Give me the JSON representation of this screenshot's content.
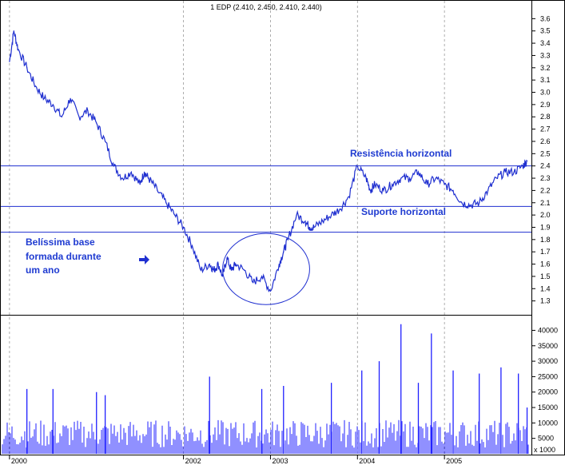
{
  "header": {
    "text": "1 EDP (2.410, 2.450, 2.410, 2.440)"
  },
  "colors": {
    "price_line": "#1f2fd0",
    "volume_bars": "#2020ff",
    "annotation_text": "#1f3bd1",
    "grid": "#9a9a9a",
    "frame": "#000000"
  },
  "annotations": {
    "resistance": "Resistência horizontal",
    "support": "Suporte horizontal",
    "base_line1": "Belíssima base",
    "base_line2": "formada durante",
    "base_line3": "um ano"
  },
  "volume_multiplier_label": "x 1000",
  "chart_data": [
    {
      "type": "line",
      "xlabel": "",
      "ylabel": "",
      "x_ticks": [
        "2000",
        "2002",
        "2003",
        "2004",
        "2005"
      ],
      "x_domain": [
        1999.9,
        2006.0
      ],
      "y_ticks": [
        1.3,
        1.4,
        1.5,
        1.6,
        1.7,
        1.8,
        1.9,
        2.0,
        2.1,
        2.2,
        2.3,
        2.4,
        2.5,
        2.6,
        2.7,
        2.8,
        2.9,
        3.0,
        3.1,
        3.2,
        3.3,
        3.4,
        3.5,
        3.6
      ],
      "ylim": [
        1.2,
        3.7
      ],
      "grid": "vertical dashed at year ticks",
      "series": [
        {
          "x": [
            2000.0,
            2000.05,
            2000.1,
            2000.2,
            2000.3,
            2000.4,
            2000.5,
            2000.6,
            2000.7,
            2000.8,
            2000.9,
            2001.0,
            2001.1,
            2001.2,
            2001.3,
            2001.4,
            2001.5,
            2001.55,
            2001.6,
            2001.7,
            2001.8,
            2001.9,
            2002.0,
            2002.1,
            2002.2,
            2002.3,
            2002.35,
            2002.4,
            2002.45,
            2002.5,
            2002.55,
            2002.6,
            2002.7,
            2002.8,
            2002.9,
            2003.0,
            2003.1,
            2003.15,
            2003.2,
            2003.3,
            2003.4,
            2003.45,
            2003.5,
            2003.6,
            2003.7,
            2003.8,
            2003.9,
            2004.0,
            2004.1,
            2004.15,
            2004.2,
            2004.3,
            2004.4,
            2004.5,
            2004.6,
            2004.7,
            2004.8,
            2004.9,
            2005.0,
            2005.1,
            2005.2,
            2005.3,
            2005.4,
            2005.5,
            2005.6,
            2005.7,
            2005.8,
            2005.9,
            2005.95
          ],
          "values": [
            3.25,
            3.5,
            3.35,
            3.2,
            3.05,
            2.95,
            2.9,
            2.8,
            2.95,
            2.8,
            2.85,
            2.75,
            2.6,
            2.4,
            2.3,
            2.35,
            2.25,
            2.35,
            2.3,
            2.2,
            2.1,
            2.0,
            1.9,
            1.75,
            1.55,
            1.6,
            1.55,
            1.6,
            1.5,
            1.65,
            1.55,
            1.6,
            1.55,
            1.45,
            1.5,
            1.38,
            1.6,
            1.7,
            1.8,
            2.0,
            1.95,
            1.9,
            1.9,
            1.95,
            2.0,
            2.05,
            2.15,
            2.4,
            2.3,
            2.2,
            2.25,
            2.2,
            2.25,
            2.3,
            2.3,
            2.35,
            2.25,
            2.3,
            2.25,
            2.2,
            2.1,
            2.08,
            2.1,
            2.2,
            2.3,
            2.35,
            2.35,
            2.4,
            2.44
          ]
        }
      ],
      "horizontal_levels": [
        2.4,
        2.07,
        1.86
      ],
      "ellipse": {
        "x_range": [
          2002.45,
          2003.45
        ],
        "y_range": [
          1.27,
          1.85
        ]
      }
    },
    {
      "type": "bar",
      "xlabel": "",
      "ylabel": "",
      "y_ticks": [
        5000,
        10000,
        15000,
        20000,
        25000,
        30000,
        35000,
        40000
      ],
      "ylim": [
        0,
        44000
      ],
      "series": [
        {
          "x": [
            2000.2,
            2000.5,
            2001.0,
            2001.1,
            2002.3,
            2002.9,
            2003.15,
            2003.7,
            2004.05,
            2004.25,
            2004.5,
            2004.7,
            2004.85,
            2005.1,
            2005.4,
            2005.65,
            2005.85,
            2005.95
          ],
          "values": [
            21000,
            21000,
            20000,
            19000,
            25000,
            21000,
            22000,
            23000,
            27000,
            30000,
            42000,
            23000,
            39000,
            27000,
            26000,
            28000,
            26000,
            15000
          ]
        }
      ]
    }
  ]
}
